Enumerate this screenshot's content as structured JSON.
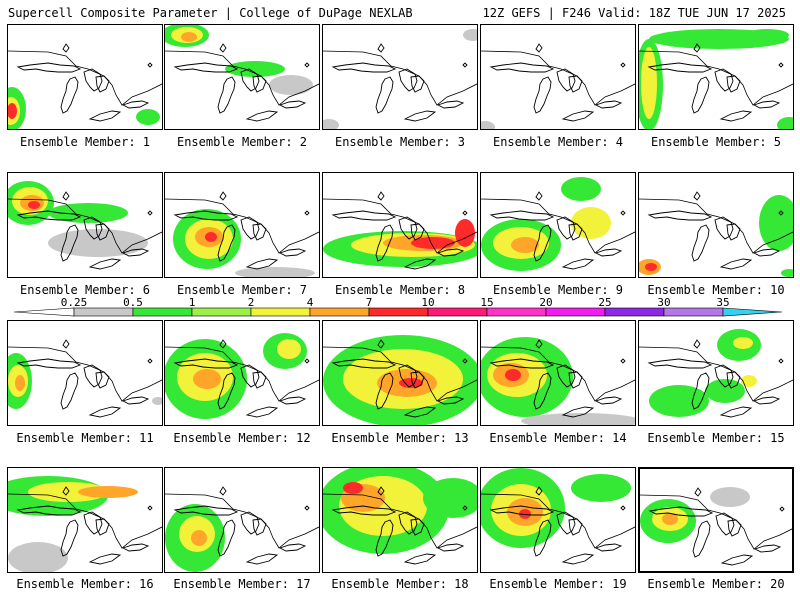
{
  "header": {
    "left": "Supercell Composite Parameter | College of DuPage NEXLAB",
    "right": "12Z GEFS | F246 Valid: 18Z TUE JUN 17 2025"
  },
  "colors": {
    "water_line": "#000000",
    "panel_border": "#000000"
  },
  "colorbar": {
    "labels": [
      "0.25",
      "0.5",
      "1",
      "2",
      "4",
      "7",
      "10",
      "15",
      "20",
      "25",
      "30",
      "35"
    ],
    "colors": [
      "#c8c8c8",
      "#36e836",
      "#9bf04a",
      "#f2f23a",
      "#ffa52a",
      "#ff2a2a",
      "#ff1a78",
      "#ff32c8",
      "#f01cf0",
      "#8c28e6",
      "#b478e6",
      "#32d2f0"
    ]
  },
  "members": [
    {
      "label": "Ensemble Member: 1"
    },
    {
      "label": "Ensemble Member: 2"
    },
    {
      "label": "Ensemble Member: 3"
    },
    {
      "label": "Ensemble Member: 4"
    },
    {
      "label": "Ensemble Member: 5"
    },
    {
      "label": "Ensemble Member: 6"
    },
    {
      "label": "Ensemble Member: 7"
    },
    {
      "label": "Ensemble Member: 8"
    },
    {
      "label": "Ensemble Member: 9"
    },
    {
      "label": "Ensemble Member: 10"
    },
    {
      "label": "Ensemble Member: 11"
    },
    {
      "label": "Ensemble Member: 12"
    },
    {
      "label": "Ensemble Member: 13"
    },
    {
      "label": "Ensemble Member: 14"
    },
    {
      "label": "Ensemble Member: 15"
    },
    {
      "label": "Ensemble Member: 16"
    },
    {
      "label": "Ensemble Member: 17"
    },
    {
      "label": "Ensemble Member: 18"
    },
    {
      "label": "Ensemble Member: 19"
    },
    {
      "label": "Ensemble Member: 20"
    }
  ]
}
